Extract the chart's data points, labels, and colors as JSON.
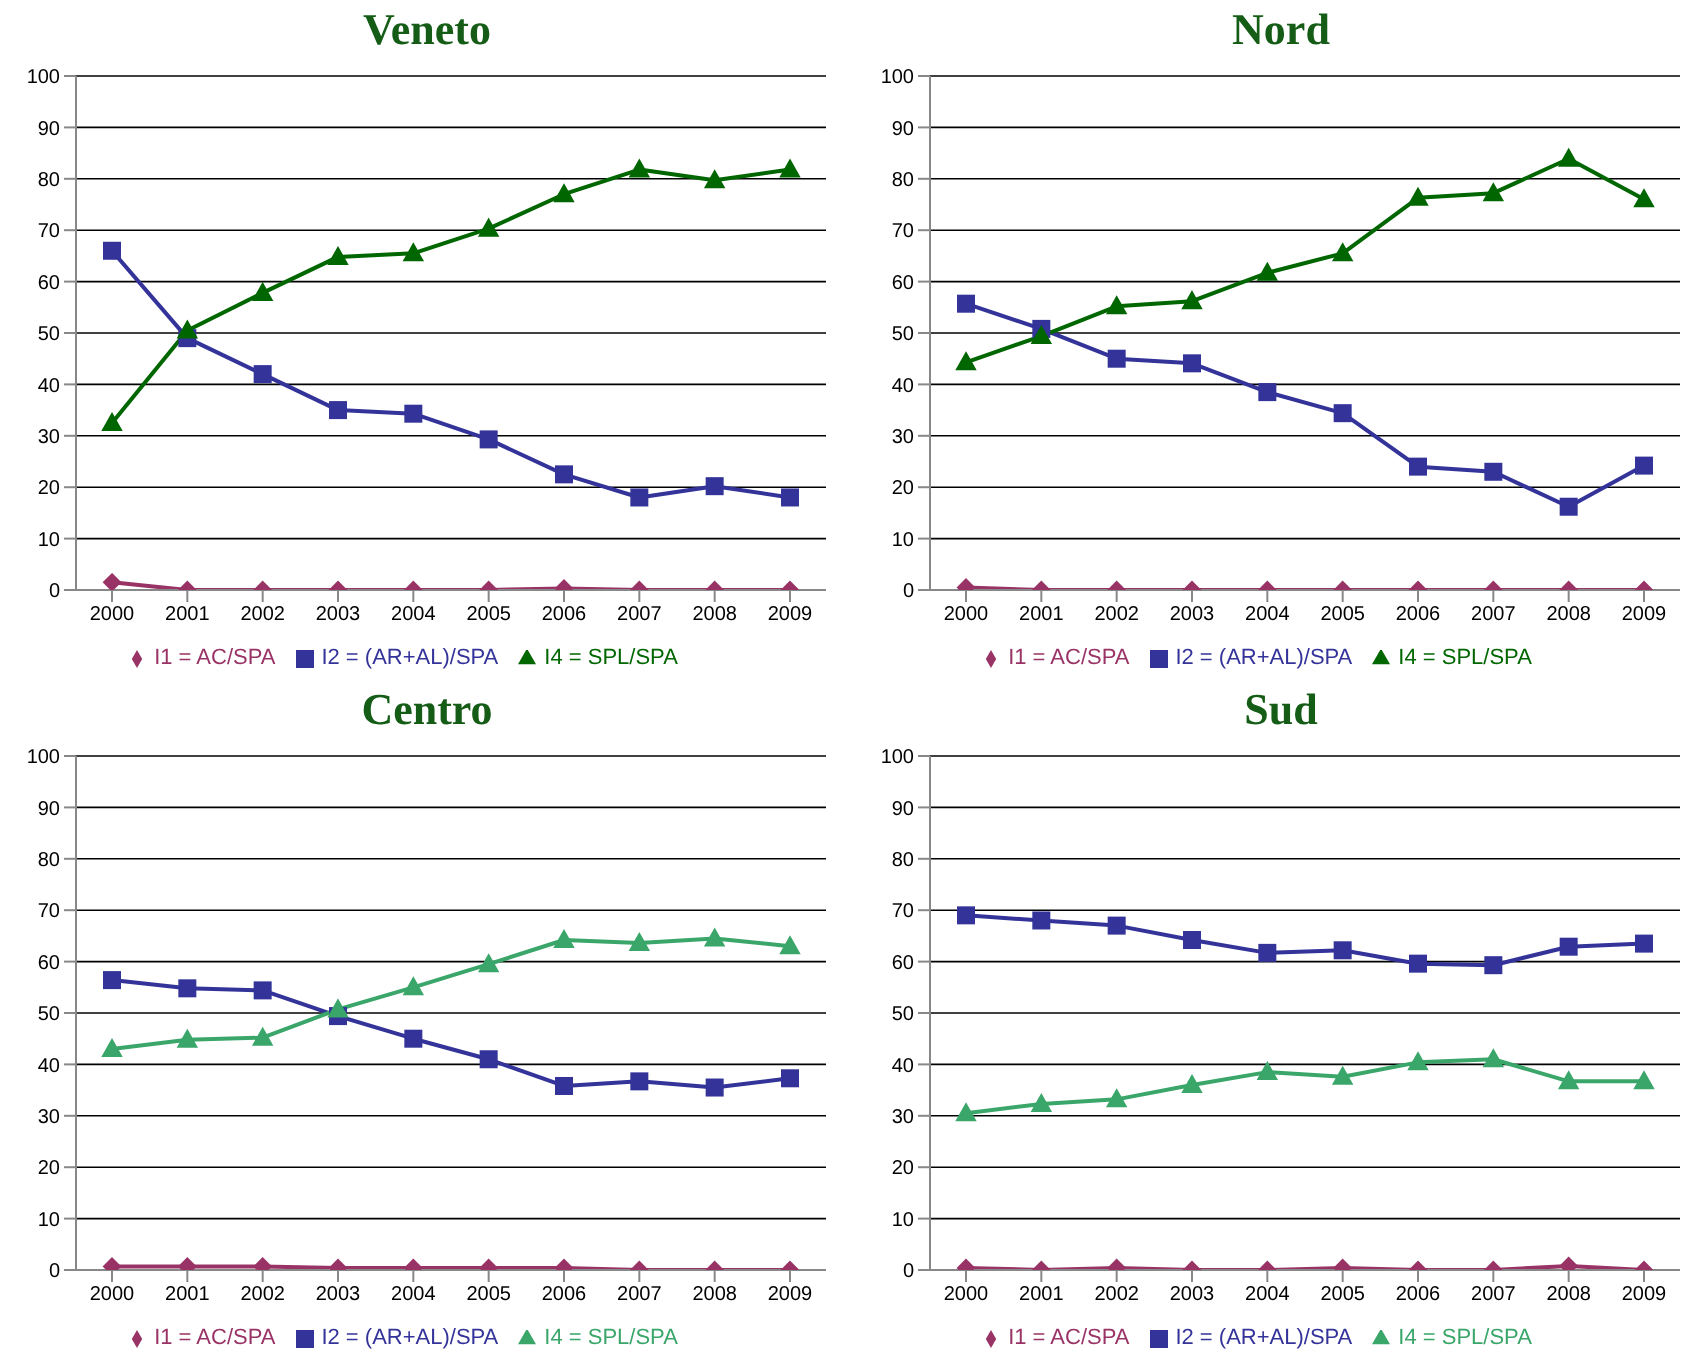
{
  "chart_data": [
    {
      "type": "line",
      "title": "Veneto",
      "categories": [
        "2000",
        "2001",
        "2002",
        "2003",
        "2004",
        "2005",
        "2006",
        "2007",
        "2008",
        "2009"
      ],
      "ylim": [
        0,
        100
      ],
      "yticks": [
        0,
        10,
        20,
        30,
        40,
        50,
        60,
        70,
        80,
        90,
        100
      ],
      "grid": "y",
      "legend": "bottom",
      "series": [
        {
          "name": "I1 = AC/SPA",
          "color": "#993366",
          "marker": "diamond",
          "values": [
            1.5,
            0,
            0,
            0,
            0,
            0,
            0.3,
            0,
            0,
            0
          ]
        },
        {
          "name": "I2 = (AR+AL)/SPA",
          "color": "#333399",
          "marker": "square",
          "values": [
            66,
            49,
            42,
            35,
            34.3,
            29.3,
            22.5,
            18,
            20.2,
            18
          ]
        },
        {
          "name": "I4 = SPL/SPA",
          "color": "#006600",
          "marker": "triangle",
          "values": [
            32.5,
            50.5,
            57.8,
            64.8,
            65.5,
            70.3,
            77,
            81.8,
            79.7,
            81.8
          ]
        }
      ]
    },
    {
      "type": "line",
      "title": "Nord",
      "categories": [
        "2000",
        "2001",
        "2002",
        "2003",
        "2004",
        "2005",
        "2006",
        "2007",
        "2008",
        "2009"
      ],
      "ylim": [
        0,
        100
      ],
      "yticks": [
        0,
        10,
        20,
        30,
        40,
        50,
        60,
        70,
        80,
        90,
        100
      ],
      "grid": "y",
      "legend": "bottom",
      "series": [
        {
          "name": "I1 = AC/SPA",
          "color": "#993366",
          "marker": "diamond",
          "values": [
            0.5,
            0,
            0,
            0,
            0,
            0,
            0,
            0,
            0,
            0
          ]
        },
        {
          "name": "I2 = (AR+AL)/SPA",
          "color": "#333399",
          "marker": "square",
          "values": [
            55.7,
            50.8,
            45,
            44.1,
            38.5,
            34.4,
            24,
            23,
            16.2,
            24.2
          ]
        },
        {
          "name": "I4 = SPL/SPA",
          "color": "#006600",
          "marker": "triangle",
          "values": [
            44.3,
            49.4,
            55.2,
            56.2,
            61.7,
            65.5,
            76.3,
            77.2,
            83.9,
            76
          ]
        }
      ]
    },
    {
      "type": "line",
      "title": "Centro",
      "categories": [
        "2000",
        "2001",
        "2002",
        "2003",
        "2004",
        "2005",
        "2006",
        "2007",
        "2008",
        "2009"
      ],
      "ylim": [
        0,
        100
      ],
      "yticks": [
        0,
        10,
        20,
        30,
        40,
        50,
        60,
        70,
        80,
        90,
        100
      ],
      "grid": "y",
      "legend": "bottom",
      "series": [
        {
          "name": "I1 = AC/SPA",
          "color": "#993366",
          "marker": "diamond",
          "values": [
            0.7,
            0.7,
            0.7,
            0.4,
            0.4,
            0.4,
            0.4,
            0,
            0,
            0
          ]
        },
        {
          "name": "I2 = (AR+AL)/SPA",
          "color": "#333399",
          "marker": "square",
          "values": [
            56.4,
            54.8,
            54.4,
            49.4,
            45,
            41,
            35.8,
            36.7,
            35.5,
            37.3
          ]
        },
        {
          "name": "I4 = SPL/SPA",
          "color": "#3aa66a",
          "marker": "triangle",
          "values": [
            43,
            44.8,
            45.2,
            50.7,
            55,
            59.5,
            64.2,
            63.6,
            64.5,
            63
          ]
        }
      ]
    },
    {
      "type": "line",
      "title": "Sud",
      "categories": [
        "2000",
        "2001",
        "2002",
        "2003",
        "2004",
        "2005",
        "2006",
        "2007",
        "2008",
        "2009"
      ],
      "ylim": [
        0,
        100
      ],
      "yticks": [
        0,
        10,
        20,
        30,
        40,
        50,
        60,
        70,
        80,
        90,
        100
      ],
      "grid": "y",
      "legend": "bottom",
      "series": [
        {
          "name": "I1 = AC/SPA",
          "color": "#993366",
          "marker": "diamond",
          "values": [
            0.4,
            0,
            0.4,
            0,
            0,
            0.4,
            0,
            0,
            0.8,
            0
          ]
        },
        {
          "name": "I2 = (AR+AL)/SPA",
          "color": "#333399",
          "marker": "square",
          "values": [
            69,
            68,
            67,
            64.2,
            61.7,
            62.2,
            59.6,
            59.3,
            62.9,
            63.5
          ]
        },
        {
          "name": "I4 = SPL/SPA",
          "color": "#3aa66a",
          "marker": "triangle",
          "values": [
            30.5,
            32.3,
            33.2,
            36,
            38.5,
            37.6,
            40.4,
            41,
            36.7,
            36.7
          ]
        }
      ]
    }
  ]
}
